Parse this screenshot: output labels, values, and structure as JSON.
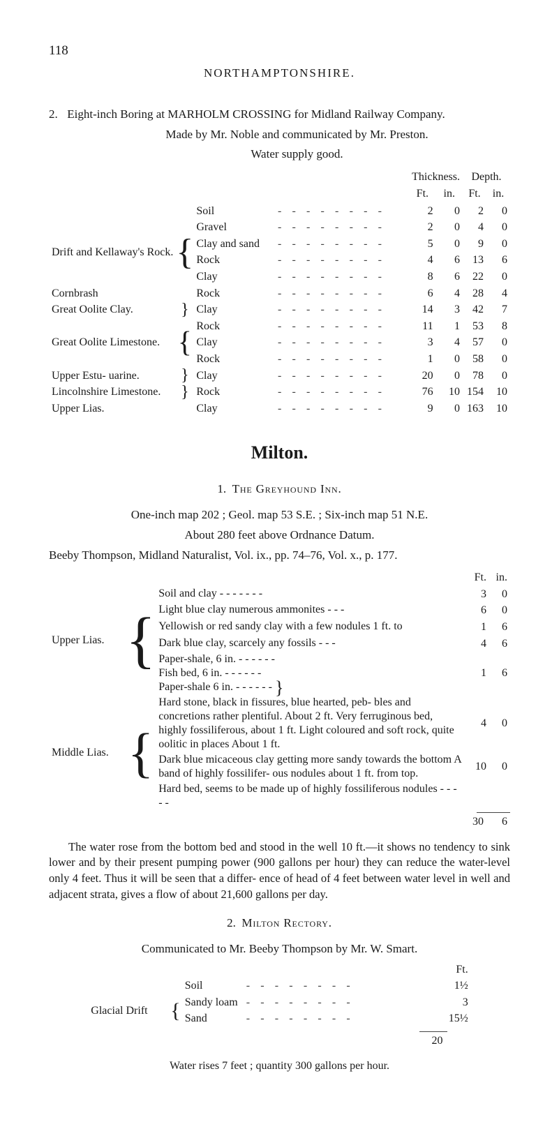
{
  "page_number": "118",
  "running_head": "NORTHAMPTONSHIRE.",
  "boring": {
    "num": "2.",
    "line1": "Eight-inch Boring at MARHOLM CROSSING for Midland Railway Company.",
    "line2": "Made by Mr. Noble and communicated by Mr. Preston.",
    "line3": "Water supply good."
  },
  "tbl1": {
    "head_thickness": "Thickness.",
    "head_depth": "Depth.",
    "head_ft": "Ft.",
    "head_in": "in.",
    "groups": [
      {
        "unit": "",
        "brace": false,
        "rows": [
          {
            "layer": "Soil",
            "t_ft": "2",
            "t_in": "0",
            "d_ft": "2",
            "d_in": "0"
          }
        ]
      },
      {
        "unit": "Drift and Kellaway's Rock.",
        "brace": true,
        "rows": [
          {
            "layer": "Gravel",
            "t_ft": "2",
            "t_in": "0",
            "d_ft": "4",
            "d_in": "0"
          },
          {
            "layer": "Clay and sand",
            "t_ft": "5",
            "t_in": "0",
            "d_ft": "9",
            "d_in": "0"
          },
          {
            "layer": "Rock",
            "t_ft": "4",
            "t_in": "6",
            "d_ft": "13",
            "d_in": "6"
          },
          {
            "layer": "Clay",
            "t_ft": "8",
            "t_in": "6",
            "d_ft": "22",
            "d_in": "0"
          }
        ]
      },
      {
        "unit": "Cornbrash",
        "brace": false,
        "rows": [
          {
            "layer": "Rock",
            "t_ft": "6",
            "t_in": "4",
            "d_ft": "28",
            "d_in": "4"
          }
        ]
      },
      {
        "unit": "Great Oolite Clay.",
        "brace": true,
        "rows": [
          {
            "layer": "Clay",
            "t_ft": "14",
            "t_in": "3",
            "d_ft": "42",
            "d_in": "7"
          }
        ]
      },
      {
        "unit": "Great Oolite Limestone.",
        "brace": true,
        "rows": [
          {
            "layer": "Rock",
            "t_ft": "11",
            "t_in": "1",
            "d_ft": "53",
            "d_in": "8"
          },
          {
            "layer": "Clay",
            "t_ft": "3",
            "t_in": "4",
            "d_ft": "57",
            "d_in": "0"
          },
          {
            "layer": "Rock",
            "t_ft": "1",
            "t_in": "0",
            "d_ft": "58",
            "d_in": "0"
          }
        ]
      },
      {
        "unit": "Upper Estu- uarine.",
        "brace": true,
        "rows": [
          {
            "layer": "Clay",
            "t_ft": "20",
            "t_in": "0",
            "d_ft": "78",
            "d_in": "0"
          }
        ]
      },
      {
        "unit": "Lincolnshire Limestone.",
        "brace": true,
        "rows": [
          {
            "layer": "Rock",
            "t_ft": "76",
            "t_in": "10",
            "d_ft": "154",
            "d_in": "10"
          }
        ]
      },
      {
        "unit": "Upper Lias.",
        "brace": false,
        "rows": [
          {
            "layer": "Clay",
            "t_ft": "9",
            "t_in": "0",
            "d_ft": "163",
            "d_in": "10"
          }
        ]
      }
    ]
  },
  "milton": {
    "title": "Milton.",
    "sub_num": "1.",
    "sub_title": "The Greyhound Inn.",
    "line1": "One-inch map 202 ; Geol. map 53 S.E. ; Six-inch map 51 N.E.",
    "line2": "About 280 feet above Ordnance Datum.",
    "line3": "Beeby Thompson, Midland Naturalist, Vol. ix., pp. 74–76, Vol. x., p. 177."
  },
  "tbl2": {
    "head_ft": "Ft.",
    "head_in": "in.",
    "upper_label": "Upper Lias.",
    "middle_label": "Middle Lias.",
    "rows_upper": [
      {
        "desc": "Soil and clay  -     -     -     -     -     -     -",
        "ft": "3",
        "in": "0"
      },
      {
        "desc": "Light blue clay numerous ammonites  -     -     -",
        "ft": "6",
        "in": "0"
      },
      {
        "desc": "Yellowish or red sandy clay with a few nodules 1 ft. to",
        "ft": "1",
        "in": "6"
      },
      {
        "desc": "Dark blue clay, scarcely any fossils     -     -     -",
        "ft": "4",
        "in": "6"
      }
    ],
    "bracket_upper": {
      "lines": [
        "Paper-shale, 6 in.   -   -   -   -   -   -",
        "Fish bed, 6 in.        -   -   -   -   -   -",
        "Paper-shale 6 in.   -   -   -   -   -   -"
      ],
      "ft": "1",
      "in": "6"
    },
    "rows_middle": [
      {
        "desc": "Hard stone, black in fissures, blue hearted, peb- bles and concretions rather plentiful. About 2 ft. Very ferruginous bed, highly fossiliferous, about 1 ft. Light coloured and soft rock, quite oolitic in places About 1 ft.",
        "ft": "4",
        "in": "0"
      },
      {
        "desc": "Dark blue micaceous clay getting more sandy towards the bottom A band of highly fossilifer- ous nodules about 1 ft. from top.",
        "ft": "10",
        "in": "0"
      },
      {
        "desc": "Hard bed, seems to be made up of highly fossiliferous nodules     -     -     -     -     -",
        "ft": "",
        "in": ""
      }
    ],
    "total_ft": "30",
    "total_in": "6"
  },
  "prose": "The water rose from the bottom bed and stood in the well 10 ft.—it shows no tendency to sink lower and by their present pumping power (900 gallons per hour) they can reduce the water-level only 4 feet. Thus it will be seen that a differ- ence of head of 4 feet between water level in well and adjacent strata, gives a flow of about 21,600 gallons per day.",
  "rectory": {
    "num": "2.",
    "title": "Milton Rectory.",
    "comm": "Communicated to Mr. Beeby Thompson by Mr. W. Smart.",
    "ft_label": "Ft.",
    "rows": [
      {
        "unit": "",
        "layer": "Soil",
        "val": "1½"
      },
      {
        "unit": "Glacial Drift",
        "brace": true,
        "layers": [
          {
            "layer": "Sandy loam",
            "val": "3"
          },
          {
            "layer": "Sand",
            "val": "15½"
          }
        ]
      }
    ],
    "total": "20"
  },
  "footer": "Water rises 7 feet ; quantity 300 gallons per hour."
}
